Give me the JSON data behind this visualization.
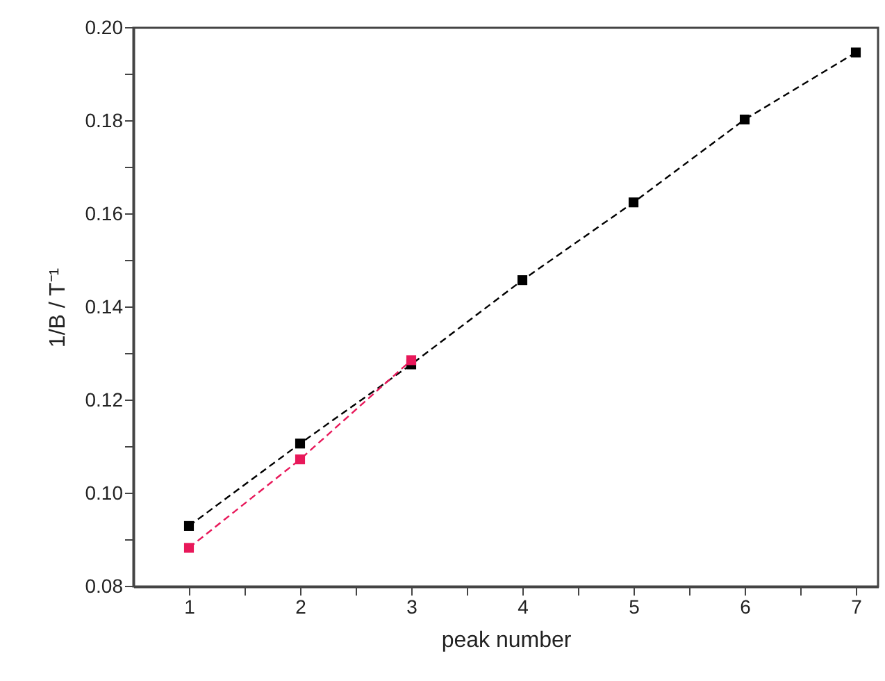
{
  "chart_data": {
    "type": "line",
    "xlabel": "peak number",
    "ylabel": "1/B / T⁻¹",
    "xlim": [
      0.5,
      7.2
    ],
    "ylim": [
      0.08,
      0.2
    ],
    "xticks": [
      1,
      {
        "value": 1.5,
        "label": null
      },
      2,
      {
        "value": 2.5,
        "label": null
      },
      3,
      {
        "value": 3.5,
        "label": null
      },
      4,
      {
        "value": 4.5,
        "label": null
      },
      5,
      {
        "value": 5.5,
        "label": null
      },
      6,
      {
        "value": 6.5,
        "label": null
      },
      7
    ],
    "yticks": [
      0.08,
      {
        "value": 0.09,
        "label": null
      },
      {
        "value": 0.1,
        "label": "0.10"
      },
      {
        "value": 0.11,
        "label": null
      },
      0.12,
      {
        "value": 0.13,
        "label": null
      },
      0.14,
      {
        "value": 0.15,
        "label": null
      },
      0.16,
      {
        "value": 0.17,
        "label": null
      },
      0.18,
      {
        "value": 0.19,
        "label": null
      },
      {
        "value": 0.2,
        "label": "0.20"
      }
    ],
    "grid": false,
    "marker": "square",
    "line_style": "dashed",
    "series": [
      {
        "color": "#000000",
        "x": [
          1,
          2,
          3,
          4,
          5,
          6,
          7
        ],
        "values": [
          0.093,
          0.1107,
          0.1277,
          0.1458,
          0.1625,
          0.1803,
          0.1947
        ]
      },
      {
        "color": "#e8185a",
        "x": [
          1,
          2,
          3
        ],
        "values": [
          0.0883,
          0.1073,
          0.1286
        ]
      }
    ]
  }
}
